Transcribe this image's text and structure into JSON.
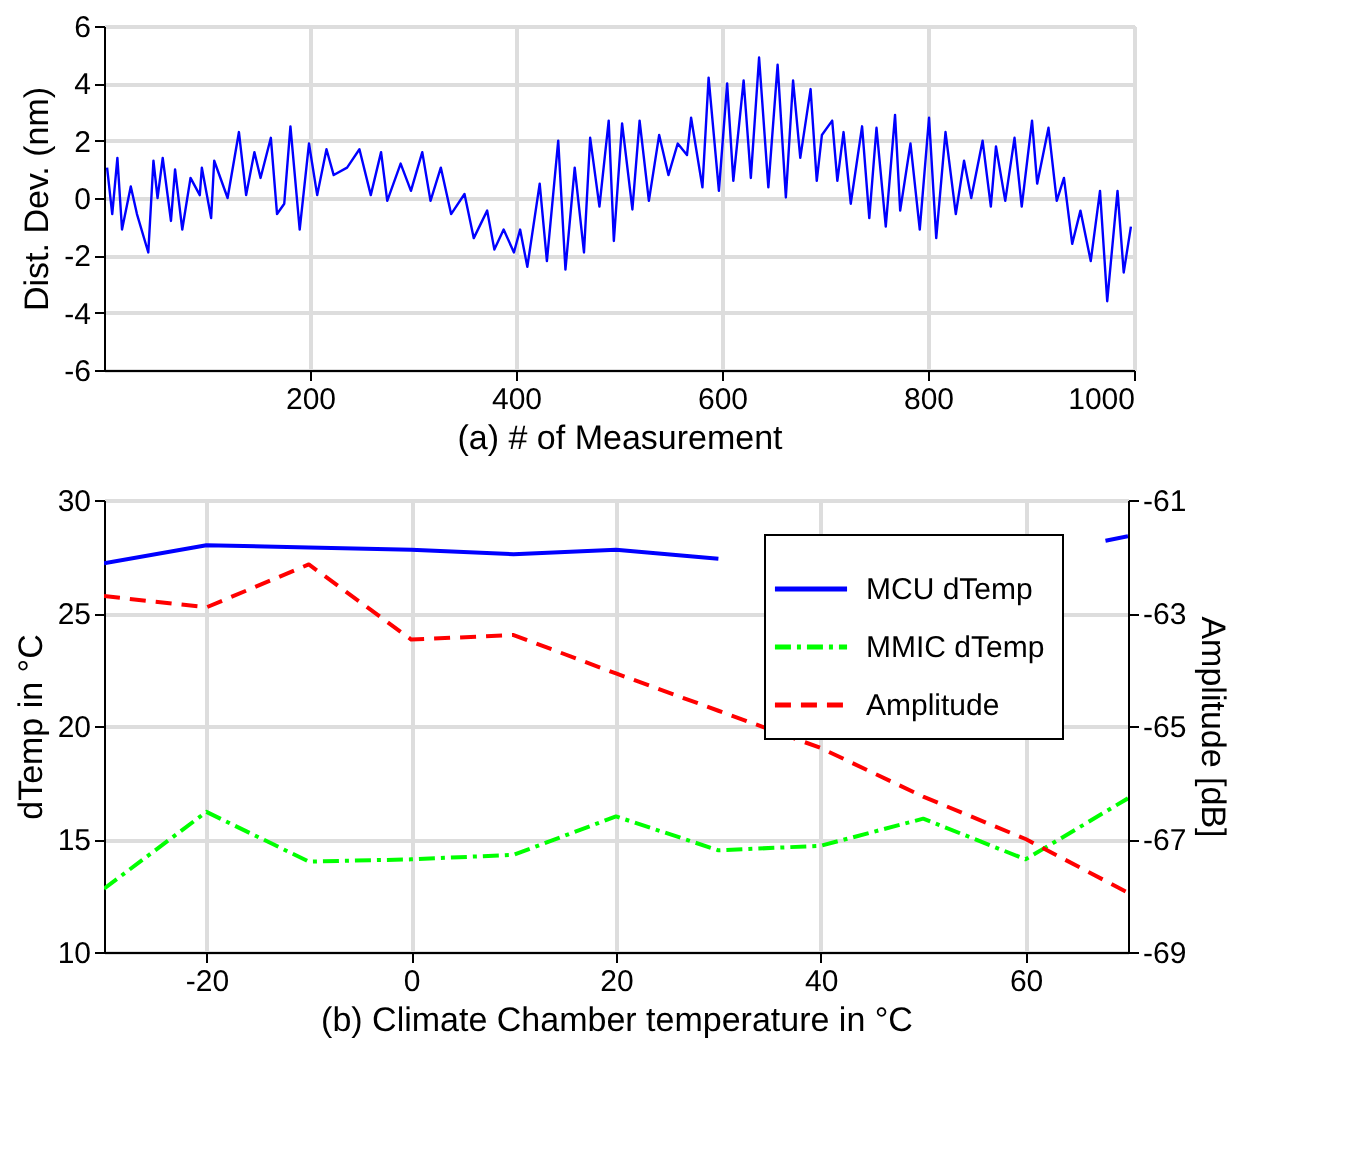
{
  "chart_data": [
    {
      "type": "line",
      "xlabel": "(a) # of Measurement",
      "ylabel": "Dist. Dev. (nm)",
      "xlim": [
        0,
        1000
      ],
      "xticks": [
        200,
        400,
        600,
        800,
        1000
      ],
      "ylim": [
        -6,
        6
      ],
      "yticks": [
        -6,
        -4,
        -2,
        0,
        2,
        4,
        6
      ],
      "grid": true,
      "legend": false,
      "x": [
        3,
        8,
        13,
        17.5,
        26,
        32,
        43,
        48,
        52,
        57,
        65,
        69,
        76,
        84,
        93,
        95,
        104,
        107,
        120,
        131,
        138,
        146,
        152,
        162,
        168,
        175,
        181,
        190,
        199,
        207,
        216,
        223,
        236,
        248,
        259,
        269,
        275,
        288,
        298,
        309,
        317,
        327,
        337,
        350,
        359,
        372,
        379,
        388,
        398,
        404,
        411,
        423,
        430,
        441,
        448,
        457,
        466,
        472,
        481,
        490,
        495,
        503,
        513,
        520,
        529,
        539,
        548,
        557,
        566,
        570,
        581,
        587,
        597,
        605,
        611,
        621,
        628,
        636,
        645,
        654,
        662,
        669,
        676,
        686,
        692,
        697,
        707,
        712,
        718,
        725,
        736,
        743,
        750,
        759,
        768,
        773,
        783,
        792,
        801,
        808,
        817,
        827,
        835,
        842,
        853,
        861,
        866,
        875,
        884,
        891,
        901,
        906,
        917,
        925,
        932,
        940,
        948,
        958,
        967,
        974,
        984,
        990,
        997
      ],
      "series": [
        {
          "color": "#0000ff",
          "line_style": "solid",
          "values": [
            1.06,
            -0.56,
            1.4,
            -1.1,
            0.4,
            -0.56,
            -1.9,
            1.3,
            0,
            1.4,
            -0.8,
            1.0,
            -1.1,
            0.7,
            0.1,
            1.06,
            -0.7,
            1.3,
            0,
            2.3,
            0.1,
            1.6,
            0.7,
            2.1,
            -0.56,
            -0.2,
            2.5,
            -1.1,
            1.9,
            0.1,
            1.7,
            0.8,
            1.06,
            1.7,
            0.1,
            1.6,
            -0.1,
            1.2,
            0.25,
            1.6,
            -0.1,
            1.06,
            -0.56,
            0.14,
            -1.4,
            -0.44,
            -1.8,
            -1.1,
            -1.9,
            -1.1,
            -2.4,
            0.5,
            -2.2,
            2.0,
            -2.5,
            1.06,
            -1.9,
            2.1,
            -0.3,
            2.7,
            -1.5,
            2.6,
            -0.4,
            2.7,
            -0.1,
            2.2,
            0.8,
            1.9,
            1.5,
            2.8,
            0.37,
            4.2,
            0.25,
            4.0,
            0.6,
            4.1,
            0.7,
            4.9,
            0.37,
            4.65,
            0.02,
            4.1,
            1.4,
            3.8,
            0.6,
            2.2,
            2.7,
            0.6,
            2.3,
            -0.2,
            2.5,
            -0.7,
            2.45,
            -1.0,
            2.9,
            -0.44,
            1.9,
            -1.1,
            2.8,
            -1.4,
            2.3,
            -0.56,
            1.3,
            0,
            2.0,
            -0.3,
            1.8,
            -0.1,
            2.1,
            -0.3,
            2.7,
            0.5,
            2.45,
            -0.1,
            0.7,
            -1.6,
            -0.44,
            -2.2,
            0.25,
            -3.6,
            0.25,
            -2.6,
            -1.0
          ]
        }
      ]
    },
    {
      "type": "line",
      "xlabel": "(b) Climate Chamber temperature in °C",
      "ylabel": "dTemp in °C",
      "y2label": "Amplitude [dB]",
      "xlim": [
        -30,
        70
      ],
      "xticks": [
        -20,
        0,
        20,
        40,
        60
      ],
      "ylim": [
        10,
        30
      ],
      "yticks": [
        10,
        15,
        20,
        25,
        30
      ],
      "y2lim": [
        -69,
        -61
      ],
      "y2ticks": [
        -69,
        -67,
        -65,
        -63,
        -61
      ],
      "grid": true,
      "legend": "top right",
      "x": [
        -30,
        -20,
        -10,
        0,
        10,
        20,
        30,
        40,
        50,
        60,
        70
      ],
      "series": [
        {
          "name": "MCU dTemp",
          "color": "#0000ff",
          "line_style": "solid",
          "x": [
            -30,
            -20,
            -10,
            0,
            10,
            20,
            30,
            40,
            67.8,
            70
          ],
          "values": [
            27.2,
            28.0,
            27.9,
            27.8,
            27.6,
            27.8,
            27.4,
            null,
            28.2,
            28.4
          ]
        },
        {
          "name": "MMIC dTemp",
          "color": "#00ff00",
          "line_style": "dashdot",
          "values": [
            12.8,
            16.2,
            14.0,
            14.1,
            14.3,
            16.0,
            14.5,
            14.7,
            15.9,
            14.1,
            16.8
          ]
        },
        {
          "name": "Amplitude",
          "color": "#ff0000",
          "line_style": "dashed",
          "axis": "y2",
          "values": [
            -62.7,
            -62.9,
            -62.14,
            -63.47,
            -63.39,
            -64.07,
            -64.73,
            -65.39,
            -66.25,
            -67.0,
            -67.95
          ]
        }
      ]
    }
  ]
}
